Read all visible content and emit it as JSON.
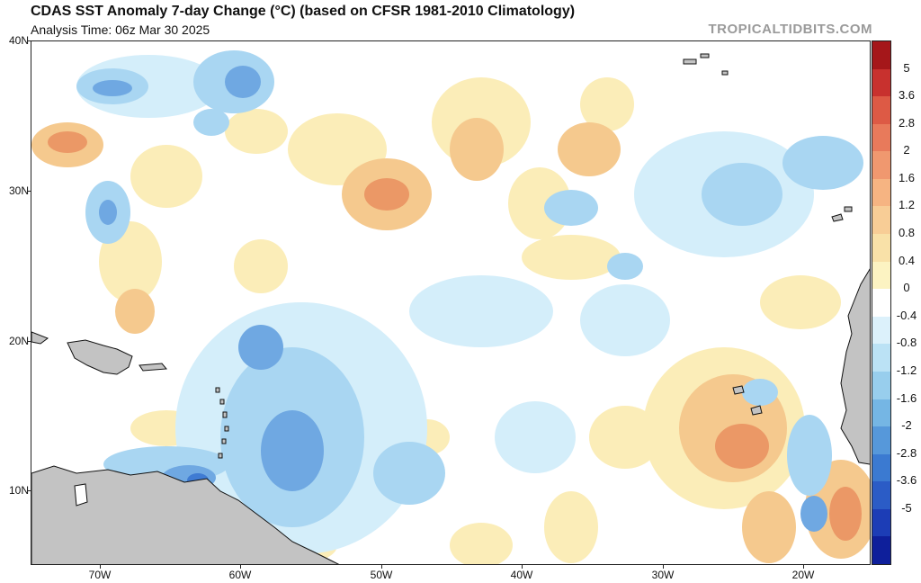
{
  "header": {
    "title": "CDAS SST Anomaly 7-day Change (°C) (based on CFSR 1981-2010 Climatology)",
    "subtitle": "Analysis Time: 06z Mar 30 2025",
    "brand": "TROPICALTIDBITS.COM"
  },
  "axes": {
    "lat_labels": [
      "40N",
      "30N",
      "20N",
      "10N"
    ],
    "lon_labels": [
      "70W",
      "60W",
      "50W",
      "40W",
      "30W",
      "20W"
    ]
  },
  "colorbar": {
    "labels": [
      "5",
      "3.6",
      "2.8",
      "2",
      "1.6",
      "1.2",
      "0.8",
      "0.4",
      "0",
      "-0.4",
      "-0.8",
      "-1.2",
      "-1.6",
      "-2",
      "-2.8",
      "-3.6",
      "-5"
    ],
    "colors": [
      "#a5171a",
      "#c8312e",
      "#dd5a45",
      "#e87a5b",
      "#f0986f",
      "#f6b482",
      "#f8cd96",
      "#f9e1a8",
      "#fcf3c2",
      "#ffffff",
      "#dcf1fb",
      "#bbe2f5",
      "#98ceed",
      "#75b6e4",
      "#5698da",
      "#3b7ad1",
      "#2b5cc6",
      "#1c3db6",
      "#0e1f9b"
    ]
  },
  "colors": {
    "land": "#c3c3c3",
    "coast": "#111111",
    "warm_light": "#fbedb8",
    "warm_mid": "#f5c98e",
    "warm_strong": "#eb9866",
    "cool_light": "#d4eefa",
    "cool_mid": "#a9d6f2",
    "cool_strong": "#6fa8e2",
    "cool_deep": "#3f7bd3"
  }
}
